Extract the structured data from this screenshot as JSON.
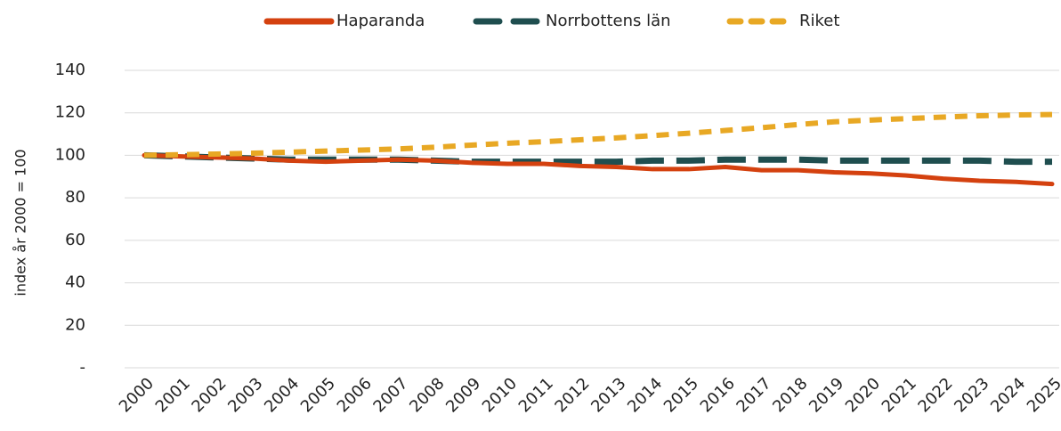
{
  "chart_data": {
    "type": "line",
    "y_axis_label": "index år 2000 = 100",
    "categories": [
      "2000",
      "2001",
      "2002",
      "2003",
      "2004",
      "2005",
      "2006",
      "2007",
      "2008",
      "2009",
      "2010",
      "2011",
      "2012",
      "2013",
      "2014",
      "2015",
      "2016",
      "2017",
      "2018",
      "2019",
      "2020",
      "2021",
      "2022",
      "2023",
      "2024",
      "2025"
    ],
    "series": [
      {
        "name": "Haparanda",
        "color": "#d4410f",
        "line_style": "solid",
        "values": [
          100,
          99.5,
          99,
          98.5,
          97.5,
          97,
          97.5,
          98,
          97.5,
          96.5,
          96,
          96,
          95,
          94.5,
          93.5,
          93.5,
          94.5,
          93,
          93,
          92,
          91.5,
          90.5,
          89,
          88,
          87.5,
          86.5
        ]
      },
      {
        "name": "Norrbottens län",
        "color": "#1f4e4f",
        "line_style": "long-dash",
        "values": [
          100,
          99.5,
          99,
          98.5,
          98,
          98,
          98,
          98,
          97.5,
          97,
          97,
          97,
          97,
          97,
          97.5,
          97.5,
          98,
          98,
          98,
          97.5,
          97.5,
          97.5,
          97.5,
          97.5,
          97,
          97
        ]
      },
      {
        "name": "Riket",
        "color": "#e8a824",
        "line_style": "dashed",
        "values": [
          100,
          100.3,
          100.6,
          101,
          101.5,
          102,
          102.5,
          103,
          103.8,
          104.8,
          105.7,
          106.4,
          107.3,
          108.2,
          109.3,
          110.4,
          111.7,
          113,
          114.5,
          115.8,
          116.6,
          117.3,
          118,
          118.6,
          119,
          119.2
        ]
      }
    ],
    "ylim": [
      0,
      140
    ],
    "yticks": [
      {
        "value": 0,
        "label": "-"
      },
      20,
      40,
      60,
      80,
      100,
      120,
      140
    ],
    "grid": true,
    "legend": "top"
  }
}
